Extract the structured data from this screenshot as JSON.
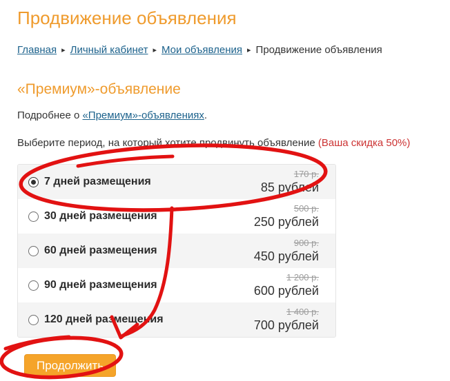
{
  "colors": {
    "heading_orange": "#ef9b2d",
    "button_orange": "#f5a42a",
    "link_blue": "#1c628c",
    "text_dark": "#333333",
    "discount_red": "#cc3333",
    "annotation_red": "#e21212",
    "strike_gray": "#9c9c9c",
    "row_stripe_gray": "#f4f4f4"
  },
  "page": {
    "title": "Продвижение объявления",
    "breadcrumb": {
      "separator": "▸",
      "items": [
        {
          "label": "Главная",
          "link": true
        },
        {
          "label": "Личный кабинет",
          "link": true
        },
        {
          "label": "Мои объявления",
          "link": true
        },
        {
          "label": "Продвижение объявления",
          "link": false
        }
      ]
    },
    "section_title": "«Премиум»-объявление",
    "about": {
      "prefix": "Подробнее о ",
      "link": "«Премиум»-объявлениях",
      "suffix": "."
    },
    "prompt": {
      "text": "Выберите период, на который хотите продвинуть объявление ",
      "discount": "(Ваша скидка 50%)"
    }
  },
  "options": [
    {
      "label": "7 дней размещения",
      "old_price": "170 р.",
      "price": "85 рублей",
      "selected": true
    },
    {
      "label": "30 дней размещения",
      "old_price": "500 р.",
      "price": "250 рублей",
      "selected": false
    },
    {
      "label": "60 дней размещения",
      "old_price": "900 р.",
      "price": "450 рублей",
      "selected": false
    },
    {
      "label": "90 дней размещения",
      "old_price": "1 200 р.",
      "price": "600 рублей",
      "selected": false
    },
    {
      "label": "120 дней размещения",
      "old_price": "1 400 р.",
      "price": "700 рублей",
      "selected": false
    }
  ],
  "button": {
    "label": "Продолжить"
  }
}
